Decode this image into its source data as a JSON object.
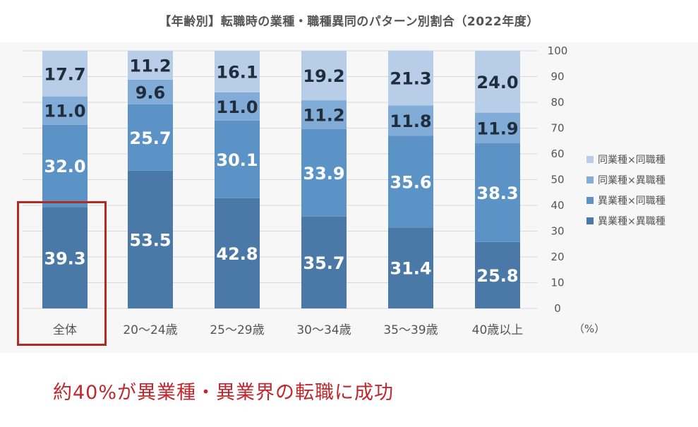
{
  "chart_data": {
    "type": "bar",
    "stacked": true,
    "title": "【年齢別】転職時の業種・職種異同のパターン別割合（2022年度）",
    "categories": [
      "全体",
      "20〜24歳",
      "25〜29歳",
      "30〜34歳",
      "35〜39歳",
      "40歳以上"
    ],
    "series": [
      {
        "name": "異業種×異職種",
        "color": "#4a79a8",
        "values": [
          39.3,
          53.5,
          42.8,
          35.7,
          31.4,
          25.8
        ]
      },
      {
        "name": "異業種×同職種",
        "color": "#5b93c7",
        "values": [
          32.0,
          25.7,
          30.1,
          33.9,
          35.6,
          38.3
        ]
      },
      {
        "name": "同業種×異職種",
        "color": "#82acd8",
        "values": [
          11.0,
          9.6,
          11.0,
          11.2,
          11.8,
          11.9
        ]
      },
      {
        "name": "同業種×同職種",
        "color": "#b7cde8",
        "values": [
          17.7,
          11.2,
          16.1,
          19.2,
          21.3,
          24.0
        ]
      }
    ],
    "ylim": [
      0,
      100
    ],
    "yticks": [
      0,
      10,
      20,
      30,
      40,
      50,
      60,
      70,
      80,
      90,
      100
    ],
    "yaxis_side": "right",
    "yunit": "（%）",
    "legend_order": [
      "同業種×同職種",
      "同業種×異職種",
      "異業種×同職種",
      "異業種×異職種"
    ],
    "legend_position": "right",
    "grid": true
  },
  "caption": "約40%が異業種・異業界の転職に成功",
  "colors": {
    "highlight": "#b22a22",
    "caption": "#c1272d",
    "grid": "#d9d9d9",
    "axis_text": "#555555"
  }
}
